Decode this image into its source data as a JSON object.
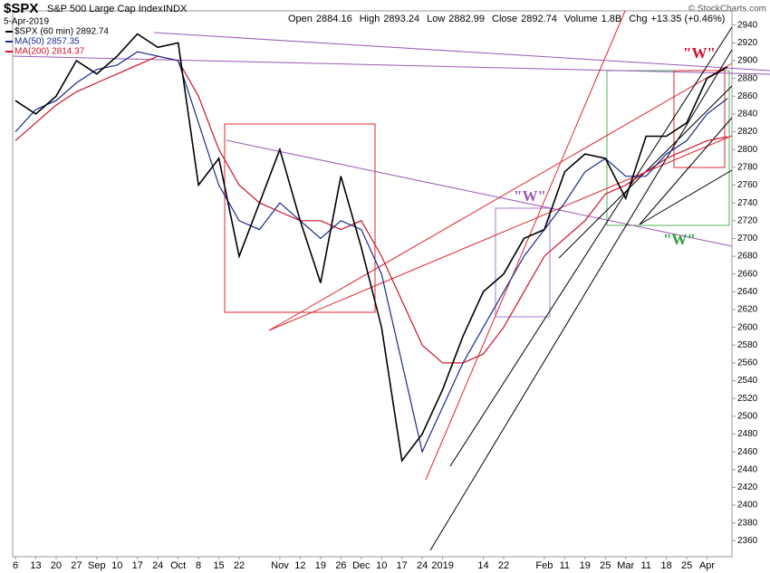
{
  "chart_data": {
    "type": "line",
    "symbol": "$SPX",
    "title": "S&P 500 Large Cap Index",
    "exchange": "INDX",
    "date": "5-Apr-2019",
    "quote": [
      {
        "label": "Open",
        "value": 2884.16
      },
      {
        "label": "High",
        "value": 2893.24
      },
      {
        "label": "Low",
        "value": 2882.99
      },
      {
        "label": "Close",
        "value": 2892.74
      },
      {
        "label": "Volume",
        "value": "1.8B"
      },
      {
        "label": "Chg",
        "value": "+13.35 (+0.46%)"
      }
    ],
    "credit": "© StockCharts.com",
    "categories": [
      "6",
      "13",
      "20",
      "27",
      "Sep",
      "10",
      "17",
      "24",
      "Oct",
      "8",
      "15",
      "22",
      null,
      "Nov",
      "12",
      "19",
      "26",
      "Dec",
      "10",
      "17",
      "24",
      "2019",
      null,
      "14",
      "22",
      null,
      "Feb",
      "11",
      "19",
      "25",
      "Mar",
      "11",
      "18",
      "25",
      "Apr",
      null
    ],
    "series": [
      {
        "name": "$SPX (60 min) 2892.74",
        "color": "#000000",
        "values": [
          2855,
          2840,
          2860,
          2900,
          2885,
          2905,
          2930,
          2915,
          2920,
          2760,
          2790,
          2680,
          2740,
          2800,
          2720,
          2650,
          2770,
          2690,
          2600,
          2450,
          2480,
          2530,
          2590,
          2640,
          2660,
          2700,
          2710,
          2775,
          2795,
          2790,
          2745,
          2815,
          2815,
          2830,
          2880,
          2892.74
        ]
      },
      {
        "name": "MA(50) 2857.35",
        "color": "#1a2a8c",
        "values": [
          2820,
          2845,
          2855,
          2875,
          2890,
          2895,
          2910,
          2905,
          2900,
          2830,
          2760,
          2720,
          2710,
          2740,
          2720,
          2700,
          2720,
          2710,
          2660,
          2560,
          2460,
          2510,
          2560,
          2600,
          2640,
          2680,
          2710,
          2740,
          2775,
          2790,
          2770,
          2770,
          2795,
          2810,
          2840,
          2857.35
        ]
      },
      {
        "name": "MA(200) 2814.37",
        "color": "#d0102a",
        "values": [
          2810,
          2830,
          2850,
          2865,
          2875,
          2885,
          2895,
          2905,
          2900,
          2860,
          2800,
          2760,
          2740,
          2730,
          2720,
          2720,
          2710,
          2720,
          2680,
          2630,
          2580,
          2560,
          2560,
          2570,
          2600,
          2640,
          2680,
          2700,
          2720,
          2750,
          2760,
          2775,
          2790,
          2800,
          2810,
          2814.37
        ]
      }
    ],
    "ylim": [
      2342,
      2956
    ],
    "yticks": [
      2360,
      2380,
      2400,
      2420,
      2440,
      2460,
      2480,
      2500,
      2520,
      2540,
      2560,
      2580,
      2600,
      2620,
      2640,
      2660,
      2680,
      2700,
      2720,
      2740,
      2760,
      2780,
      2800,
      2820,
      2840,
      2860,
      2880,
      2900,
      2920,
      2940
    ],
    "annotations": [
      {
        "text": "\"W\"",
        "color": "#d0102a"
      },
      {
        "text": "\"W\"",
        "color": "#9b59b6"
      },
      {
        "text": "\"W\"",
        "color": "#2e9e3e"
      }
    ]
  }
}
